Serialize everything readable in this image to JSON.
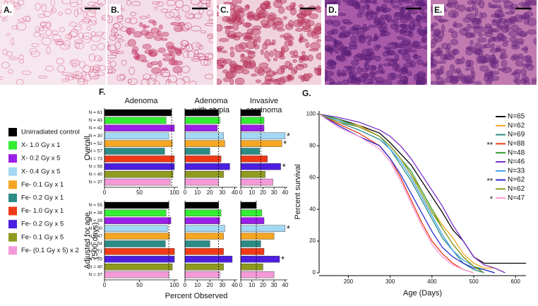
{
  "figure": {
    "image_labels": [
      "A.",
      "B.",
      "C.",
      "D.",
      "E."
    ]
  },
  "chart_data": [
    {
      "type": "hbar",
      "panel": "F.",
      "xlabel": "Percent Observed",
      "groups": [
        "Unirradiated control",
        "X- 1.0 Gy x 1",
        "X- 0.2 Gy x 5",
        "X- 0.4 Gy x 5",
        "Fe- 0.1 Gy x 1",
        "Fe- 0.2 Gy x 1",
        "Fe- 1.0 Gy x 1",
        "Fe- 0.2 Gy x 5",
        "Fe- 0.1 Gy x 5",
        "Fe- (0.1 Gy x 5) x 2"
      ],
      "colors": [
        "#000000",
        "#33ee33",
        "#9b1fe8",
        "#a3d8f4",
        "#f5a623",
        "#2b8c86",
        "#f03a17",
        "#4b1ee0",
        "#8f9a1e",
        "#f49ad8"
      ],
      "columns": [
        {
          "title": [
            "Adenoma"
          ],
          "xlim": [
            0,
            105
          ],
          "xticks": [
            0,
            50,
            100
          ]
        },
        {
          "title": [
            "Adenoma",
            "with atypia"
          ],
          "xlim": [
            0,
            42
          ],
          "xticks": [
            0,
            10,
            20,
            30,
            40
          ]
        },
        {
          "title": [
            "Invasive",
            "carcinoma"
          ],
          "xlim": [
            0,
            42
          ],
          "xticks": [
            0,
            10,
            20,
            30,
            40
          ]
        }
      ],
      "rows": [
        {
          "title": [
            "Overall"
          ],
          "n_labels": [
            "N = 61",
            "N = 43",
            "N = 42",
            "N = 30",
            "N = 52",
            "N = 57",
            "N = 73",
            "N = 56",
            "N = 40",
            "N = 37"
          ],
          "cells": [
            {
              "values": [
                96,
                88,
                100,
                92,
                97,
                86,
                100,
                100,
                98,
                94
              ]
            },
            {
              "values": [
                27,
                28,
                26,
                31,
                32,
                20,
                29,
                36,
                31,
                27
              ]
            },
            {
              "values": [
                18,
                21,
                21,
                40,
                37,
                17,
                24,
                36,
                22,
                29
              ],
              "markers": [
                null,
                null,
                null,
                "*",
                "*",
                null,
                null,
                "*",
                null,
                null
              ]
            }
          ]
        },
        {
          "title": [
            "Adjusted for age",
            "(500 days)"
          ],
          "n_labels": [
            "N = 55",
            "N = 38",
            "N = 39",
            "N = 30",
            "N = 47",
            "N = 54",
            "N = 71",
            "N = 55",
            "N = 40",
            "N = 37"
          ],
          "cells": [
            {
              "values": [
                92,
                88,
                95,
                90,
                93,
                87,
                100,
                100,
                97,
                92
              ]
            },
            {
              "values": [
                27,
                29,
                28,
                32,
                31,
                20,
                31,
                38,
                31,
                28
              ]
            },
            {
              "values": [
                14,
                19,
                21,
                40,
                30,
                18,
                21,
                35,
                20,
                30
              ],
              "markers": [
                null,
                null,
                null,
                "*",
                null,
                null,
                null,
                "*",
                null,
                null
              ]
            }
          ]
        }
      ]
    },
    {
      "type": "line",
      "panel": "G.",
      "xlabel": "Age (Days)",
      "ylabel": "Percent survival",
      "x": [
        130,
        175,
        225,
        275,
        300,
        325,
        350,
        375,
        400,
        425,
        450,
        475,
        500,
        525,
        550,
        575,
        600,
        625
      ],
      "xlim": [
        130,
        625
      ],
      "xticks": [
        200,
        300,
        400,
        500,
        600
      ],
      "ylim": [
        0,
        102
      ],
      "yticks": [
        0,
        20,
        40,
        60,
        80,
        100
      ],
      "series": [
        {
          "name": "N=65",
          "color": "#000000",
          "values": [
            100,
            97,
            93,
            88,
            82,
            75,
            68,
            58,
            48,
            38,
            27,
            20,
            10,
            6,
            6,
            6,
            6,
            6
          ]
        },
        {
          "name": "N=62",
          "color": "#f5a623",
          "values": [
            100,
            96,
            93,
            86,
            80,
            72,
            62,
            52,
            40,
            30,
            22,
            12,
            6,
            3,
            3,
            0,
            null,
            null
          ]
        },
        {
          "name": "N=69",
          "color": "#2b8c86",
          "values": [
            100,
            95,
            90,
            84,
            78,
            68,
            58,
            46,
            34,
            22,
            14,
            6,
            2,
            0,
            null,
            null,
            null,
            null
          ]
        },
        {
          "name": "N=88",
          "color": "#f03a17",
          "marker": "**",
          "values": [
            100,
            94,
            88,
            80,
            72,
            60,
            46,
            32,
            20,
            12,
            6,
            2,
            0,
            null,
            null,
            null,
            null,
            null
          ]
        },
        {
          "name": "N=48",
          "color": "#2e9e2e",
          "values": [
            100,
            97,
            92,
            86,
            80,
            72,
            64,
            52,
            40,
            28,
            18,
            10,
            4,
            2,
            0,
            null,
            null,
            null
          ]
        },
        {
          "name": "N=46",
          "color": "#7b2fc9",
          "values": [
            100,
            98,
            95,
            90,
            86,
            80,
            72,
            62,
            52,
            42,
            30,
            20,
            10,
            5,
            3,
            0,
            null,
            null
          ]
        },
        {
          "name": "N=33",
          "color": "#3fa0e8",
          "values": [
            100,
            96,
            92,
            86,
            78,
            70,
            60,
            48,
            36,
            24,
            14,
            8,
            4,
            0,
            null,
            null,
            null,
            null
          ]
        },
        {
          "name": "N=62",
          "color": "#2a2ad0",
          "marker": "**",
          "values": [
            100,
            93,
            86,
            80,
            72,
            62,
            50,
            38,
            26,
            16,
            10,
            6,
            3,
            2,
            0,
            null,
            null,
            null
          ]
        },
        {
          "name": "N=62",
          "color": "#8f9a1e",
          "values": [
            100,
            95,
            92,
            86,
            80,
            72,
            62,
            50,
            38,
            28,
            18,
            10,
            4,
            0,
            null,
            null,
            null,
            null
          ]
        },
        {
          "name": "N=47",
          "color": "#f49ad8",
          "marker": "*",
          "values": [
            100,
            92,
            86,
            78,
            70,
            58,
            44,
            30,
            18,
            10,
            5,
            2,
            0,
            null,
            null,
            null,
            null,
            null
          ]
        }
      ]
    }
  ]
}
